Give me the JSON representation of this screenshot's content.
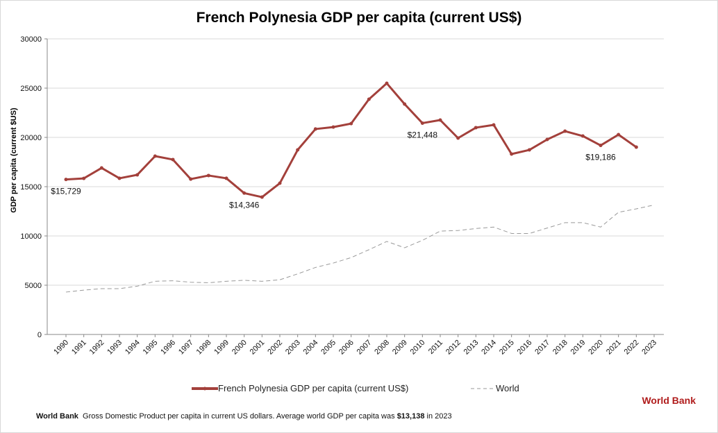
{
  "chart_data": {
    "type": "line",
    "title": "French Polynesia GDP per capita (current US$)",
    "ylabel": "GDP per capita (current $US)",
    "xlabel": "",
    "ylim": [
      0,
      30000
    ],
    "yticks": [
      0,
      5000,
      10000,
      15000,
      20000,
      25000,
      30000
    ],
    "grid": true,
    "legend_position": "bottom",
    "x": [
      1990,
      1991,
      1992,
      1993,
      1994,
      1995,
      1996,
      1997,
      1998,
      1999,
      2000,
      2001,
      2002,
      2003,
      2004,
      2005,
      2006,
      2007,
      2008,
      2009,
      2010,
      2011,
      2012,
      2013,
      2014,
      2015,
      2016,
      2017,
      2018,
      2019,
      2020,
      2021,
      2022,
      2023
    ],
    "series": [
      {
        "name": "French Polynesia GDP per capita (current US$)",
        "color": "#a3403b",
        "style": "solid-markers",
        "values": [
          15729,
          15840,
          16900,
          15850,
          16200,
          18100,
          17750,
          15770,
          16130,
          15850,
          14346,
          13940,
          15350,
          18730,
          20850,
          21050,
          21400,
          23870,
          25490,
          23380,
          21448,
          21760,
          19930,
          20990,
          21270,
          18310,
          18730,
          19790,
          20630,
          20140,
          19186,
          20280,
          19010,
          null
        ]
      },
      {
        "name": "World",
        "color": "#999999",
        "style": "dashed",
        "values": [
          4300,
          4500,
          4650,
          4650,
          4900,
          5400,
          5450,
          5300,
          5250,
          5400,
          5500,
          5400,
          5550,
          6150,
          6800,
          7250,
          7800,
          8600,
          9440,
          8800,
          9550,
          10490,
          10550,
          10750,
          10900,
          10250,
          10250,
          10800,
          11350,
          11350,
          10900,
          12400,
          12750,
          13138
        ]
      }
    ],
    "annotations": [
      {
        "x": 1990,
        "text": "$15,729"
      },
      {
        "x": 2000,
        "text": "$14,346"
      },
      {
        "x": 2010,
        "text": "$21,448"
      },
      {
        "x": 2020,
        "text": "$19,186"
      }
    ]
  },
  "source_label": "World Bank",
  "footer": {
    "source": "World Bank",
    "text": "Gross Domestic Product per capita in current US dollars.  Average world GDP per capita was",
    "value": "$13,138",
    "suffix": "in 2023"
  }
}
